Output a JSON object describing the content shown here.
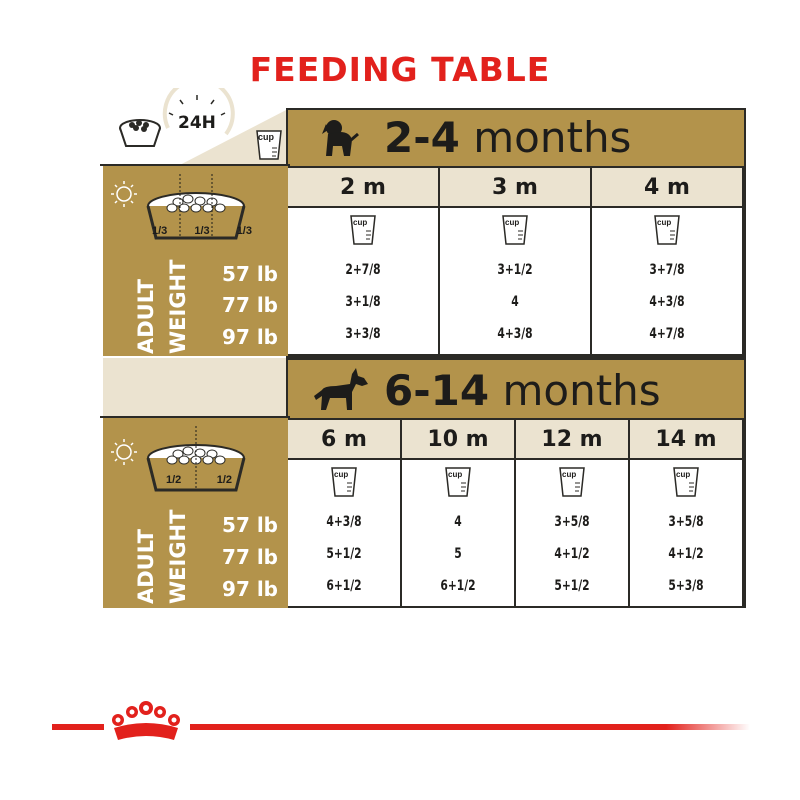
{
  "title": "FEEDING TABLE",
  "header": {
    "hours_label": "24H",
    "cup_label": "cup"
  },
  "weights": [
    "57 lb",
    "77 lb",
    "97 lb"
  ],
  "adult_weight_label": [
    "ADULT",
    "WEIGHT"
  ],
  "puppy_section": {
    "title_bold": "2-4",
    "title_rest": " months",
    "split_labels": [
      "1/3",
      "1/3",
      "1/3"
    ],
    "columns": [
      {
        "label": "2 m",
        "values": [
          "2+7/8",
          "3+1/8",
          "3+3/8"
        ]
      },
      {
        "label": "3 m",
        "values": [
          "3+1/2",
          "4",
          "4+3/8"
        ]
      },
      {
        "label": "4 m",
        "values": [
          "3+7/8",
          "4+3/8",
          "4+7/8"
        ]
      }
    ]
  },
  "junior_section": {
    "title_bold": "6-14",
    "title_rest": " months",
    "split_labels": [
      "1/2",
      "1/2"
    ],
    "columns": [
      {
        "label": "6 m",
        "values": [
          "4+3/8",
          "5+1/2",
          "6+1/2"
        ]
      },
      {
        "label": "10 m",
        "values": [
          "4",
          "5",
          "6+1/2"
        ]
      },
      {
        "label": "12 m",
        "values": [
          "3+5/8",
          "4+1/2",
          "5+1/2"
        ]
      },
      {
        "label": "14 m",
        "values": [
          "3+5/8",
          "4+1/2",
          "5+3/8"
        ]
      }
    ]
  },
  "colors": {
    "brand_red": "#e2211c",
    "gold": "#b3934b",
    "cream": "#ebe3d0",
    "dark": "#2b2a26"
  }
}
